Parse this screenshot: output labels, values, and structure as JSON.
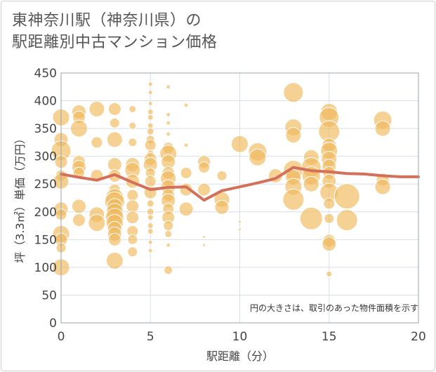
{
  "title_line1": "東神奈川駅（神奈川県）の",
  "title_line2": "駅距離別中古マンション価格",
  "chart_data": {
    "type": "scatter",
    "xlabel": "駅距離（分）",
    "ylabel": "坪（3.3㎡）単価（万円）",
    "xlim": [
      0,
      20
    ],
    "ylim": [
      0,
      450
    ],
    "xticks": [
      0,
      5,
      10,
      15,
      20
    ],
    "yticks": [
      0,
      50,
      100,
      150,
      200,
      250,
      300,
      350,
      400,
      450
    ],
    "grid": true,
    "note": "円の大きさは、取引のあった物件面積を示す",
    "bubble_color": "#f0b85a",
    "line_color": "#d4705a",
    "bubbles": [
      {
        "x": 0,
        "y": 370,
        "s": 12
      },
      {
        "x": 0,
        "y": 330,
        "s": 10
      },
      {
        "x": 0,
        "y": 310,
        "s": 14
      },
      {
        "x": 0,
        "y": 290,
        "s": 9
      },
      {
        "x": 0,
        "y": 265,
        "s": 8
      },
      {
        "x": 0,
        "y": 255,
        "s": 11
      },
      {
        "x": 0,
        "y": 205,
        "s": 10
      },
      {
        "x": 0,
        "y": 195,
        "s": 8
      },
      {
        "x": 0,
        "y": 160,
        "s": 12
      },
      {
        "x": 0,
        "y": 150,
        "s": 9
      },
      {
        "x": 0,
        "y": 135,
        "s": 7
      },
      {
        "x": 0,
        "y": 100,
        "s": 12
      },
      {
        "x": 1,
        "y": 380,
        "s": 10
      },
      {
        "x": 1,
        "y": 370,
        "s": 9
      },
      {
        "x": 1,
        "y": 350,
        "s": 12
      },
      {
        "x": 1,
        "y": 290,
        "s": 9
      },
      {
        "x": 1,
        "y": 280,
        "s": 10
      },
      {
        "x": 1,
        "y": 270,
        "s": 8
      },
      {
        "x": 1,
        "y": 210,
        "s": 10
      },
      {
        "x": 1,
        "y": 185,
        "s": 9
      },
      {
        "x": 2,
        "y": 385,
        "s": 11
      },
      {
        "x": 2,
        "y": 325,
        "s": 8
      },
      {
        "x": 2,
        "y": 265,
        "s": 9
      },
      {
        "x": 2,
        "y": 195,
        "s": 11
      },
      {
        "x": 2,
        "y": 180,
        "s": 12
      },
      {
        "x": 3,
        "y": 385,
        "s": 9
      },
      {
        "x": 3,
        "y": 360,
        "s": 7
      },
      {
        "x": 3,
        "y": 330,
        "s": 11
      },
      {
        "x": 3,
        "y": 285,
        "s": 10
      },
      {
        "x": 3,
        "y": 265,
        "s": 9
      },
      {
        "x": 3,
        "y": 240,
        "s": 8
      },
      {
        "x": 3,
        "y": 225,
        "s": 13
      },
      {
        "x": 3,
        "y": 218,
        "s": 14
      },
      {
        "x": 3,
        "y": 210,
        "s": 11
      },
      {
        "x": 3,
        "y": 200,
        "s": 12
      },
      {
        "x": 3,
        "y": 190,
        "s": 13
      },
      {
        "x": 3,
        "y": 180,
        "s": 12
      },
      {
        "x": 3,
        "y": 170,
        "s": 10
      },
      {
        "x": 3,
        "y": 160,
        "s": 10
      },
      {
        "x": 3,
        "y": 150,
        "s": 9
      },
      {
        "x": 3,
        "y": 112,
        "s": 12
      },
      {
        "x": 4,
        "y": 385,
        "s": 5
      },
      {
        "x": 4,
        "y": 355,
        "s": 5
      },
      {
        "x": 4,
        "y": 325,
        "s": 6
      },
      {
        "x": 4,
        "y": 285,
        "s": 10
      },
      {
        "x": 4,
        "y": 275,
        "s": 11
      },
      {
        "x": 4,
        "y": 255,
        "s": 10
      },
      {
        "x": 4,
        "y": 230,
        "s": 8
      },
      {
        "x": 4,
        "y": 210,
        "s": 9
      },
      {
        "x": 4,
        "y": 190,
        "s": 9
      },
      {
        "x": 4,
        "y": 165,
        "s": 8
      },
      {
        "x": 4,
        "y": 150,
        "s": 7
      },
      {
        "x": 4,
        "y": 128,
        "s": 7
      },
      {
        "x": 5,
        "y": 430,
        "s": 3
      },
      {
        "x": 5,
        "y": 415,
        "s": 3
      },
      {
        "x": 5,
        "y": 395,
        "s": 3
      },
      {
        "x": 5,
        "y": 380,
        "s": 4
      },
      {
        "x": 5,
        "y": 370,
        "s": 4
      },
      {
        "x": 5,
        "y": 355,
        "s": 4
      },
      {
        "x": 5,
        "y": 345,
        "s": 5
      },
      {
        "x": 5,
        "y": 330,
        "s": 6
      },
      {
        "x": 5,
        "y": 320,
        "s": 8
      },
      {
        "x": 5,
        "y": 305,
        "s": 5
      },
      {
        "x": 5,
        "y": 295,
        "s": 9
      },
      {
        "x": 5,
        "y": 285,
        "s": 10
      },
      {
        "x": 5,
        "y": 270,
        "s": 7
      },
      {
        "x": 5,
        "y": 255,
        "s": 8
      },
      {
        "x": 5,
        "y": 235,
        "s": 9
      },
      {
        "x": 5,
        "y": 215,
        "s": 5
      },
      {
        "x": 5,
        "y": 200,
        "s": 5
      },
      {
        "x": 5,
        "y": 190,
        "s": 4
      },
      {
        "x": 5,
        "y": 175,
        "s": 4
      },
      {
        "x": 5,
        "y": 165,
        "s": 4
      },
      {
        "x": 5,
        "y": 145,
        "s": 3
      },
      {
        "x": 5,
        "y": 130,
        "s": 3
      },
      {
        "x": 6,
        "y": 425,
        "s": 3
      },
      {
        "x": 6,
        "y": 375,
        "s": 3
      },
      {
        "x": 6,
        "y": 360,
        "s": 3
      },
      {
        "x": 6,
        "y": 340,
        "s": 3
      },
      {
        "x": 6,
        "y": 315,
        "s": 8
      },
      {
        "x": 6,
        "y": 305,
        "s": 12
      },
      {
        "x": 6,
        "y": 290,
        "s": 10
      },
      {
        "x": 6,
        "y": 270,
        "s": 9
      },
      {
        "x": 6,
        "y": 260,
        "s": 11
      },
      {
        "x": 6,
        "y": 245,
        "s": 10
      },
      {
        "x": 6,
        "y": 230,
        "s": 9
      },
      {
        "x": 6,
        "y": 220,
        "s": 10
      },
      {
        "x": 6,
        "y": 205,
        "s": 8
      },
      {
        "x": 6,
        "y": 190,
        "s": 9
      },
      {
        "x": 6,
        "y": 175,
        "s": 7
      },
      {
        "x": 6,
        "y": 160,
        "s": 5
      },
      {
        "x": 6,
        "y": 140,
        "s": 3
      },
      {
        "x": 6,
        "y": 95,
        "s": 6
      },
      {
        "x": 7,
        "y": 392,
        "s": 3
      },
      {
        "x": 7,
        "y": 320,
        "s": 3
      },
      {
        "x": 7,
        "y": 270,
        "s": 8
      },
      {
        "x": 7,
        "y": 240,
        "s": 9
      },
      {
        "x": 7,
        "y": 205,
        "s": 10
      },
      {
        "x": 8,
        "y": 290,
        "s": 9
      },
      {
        "x": 8,
        "y": 280,
        "s": 8
      },
      {
        "x": 8,
        "y": 240,
        "s": 9
      },
      {
        "x": 8,
        "y": 155,
        "s": 2
      },
      {
        "x": 8,
        "y": 140,
        "s": 2
      },
      {
        "x": 9,
        "y": 265,
        "s": 7
      },
      {
        "x": 9,
        "y": 222,
        "s": 11
      },
      {
        "x": 9,
        "y": 208,
        "s": 10
      },
      {
        "x": 10,
        "y": 322,
        "s": 12
      },
      {
        "x": 10,
        "y": 182,
        "s": 2
      },
      {
        "x": 10,
        "y": 168,
        "s": 2
      },
      {
        "x": 11,
        "y": 308,
        "s": 13
      },
      {
        "x": 11,
        "y": 298,
        "s": 12
      },
      {
        "x": 12,
        "y": 265,
        "s": 10
      },
      {
        "x": 13,
        "y": 415,
        "s": 14
      },
      {
        "x": 13,
        "y": 352,
        "s": 12
      },
      {
        "x": 13,
        "y": 338,
        "s": 11
      },
      {
        "x": 13,
        "y": 275,
        "s": 14
      },
      {
        "x": 13,
        "y": 262,
        "s": 11
      },
      {
        "x": 13,
        "y": 245,
        "s": 12
      },
      {
        "x": 13,
        "y": 222,
        "s": 15
      },
      {
        "x": 14,
        "y": 298,
        "s": 11
      },
      {
        "x": 14,
        "y": 280,
        "s": 14
      },
      {
        "x": 14,
        "y": 265,
        "s": 13
      },
      {
        "x": 14,
        "y": 250,
        "s": 11
      },
      {
        "x": 14,
        "y": 188,
        "s": 16
      },
      {
        "x": 15,
        "y": 380,
        "s": 12
      },
      {
        "x": 15,
        "y": 370,
        "s": 14
      },
      {
        "x": 15,
        "y": 345,
        "s": 15
      },
      {
        "x": 15,
        "y": 320,
        "s": 10
      },
      {
        "x": 15,
        "y": 310,
        "s": 12
      },
      {
        "x": 15,
        "y": 295,
        "s": 11
      },
      {
        "x": 15,
        "y": 282,
        "s": 10
      },
      {
        "x": 15,
        "y": 270,
        "s": 9
      },
      {
        "x": 15,
        "y": 255,
        "s": 10
      },
      {
        "x": 15,
        "y": 235,
        "s": 13
      },
      {
        "x": 15,
        "y": 215,
        "s": 8
      },
      {
        "x": 15,
        "y": 188,
        "s": 7
      },
      {
        "x": 15,
        "y": 148,
        "s": 9
      },
      {
        "x": 15,
        "y": 142,
        "s": 10
      },
      {
        "x": 15,
        "y": 88,
        "s": 4
      },
      {
        "x": 16,
        "y": 228,
        "s": 18
      },
      {
        "x": 16,
        "y": 185,
        "s": 15
      },
      {
        "x": 18,
        "y": 365,
        "s": 13
      },
      {
        "x": 18,
        "y": 350,
        "s": 11
      },
      {
        "x": 18,
        "y": 258,
        "s": 9
      },
      {
        "x": 18,
        "y": 245,
        "s": 11
      }
    ],
    "line": {
      "x": [
        0,
        1,
        2,
        3,
        4,
        5,
        6,
        7,
        8,
        9,
        10,
        11,
        12,
        13,
        14,
        15,
        16,
        17,
        18,
        19,
        20
      ],
      "y": [
        268,
        262,
        257,
        267,
        253,
        240,
        244,
        245,
        221,
        238,
        245,
        252,
        260,
        280,
        274,
        272,
        269,
        268,
        265,
        263,
        263
      ]
    }
  }
}
